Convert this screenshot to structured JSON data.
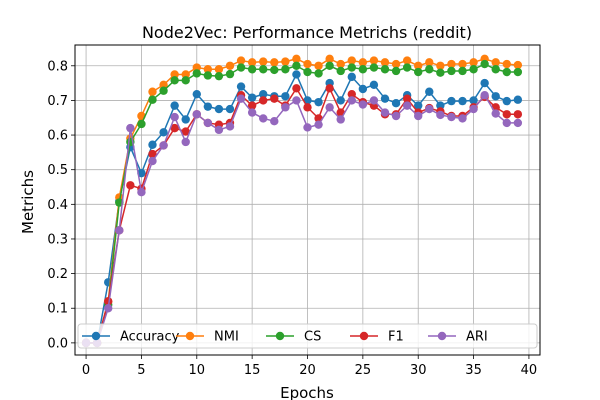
{
  "chart_data": {
    "type": "line",
    "title": "Node2Vec: Performance Metrichs (reddit)",
    "xlabel": "Epochs",
    "ylabel": "Metrichs",
    "xlim": [
      -1,
      41
    ],
    "ylim": [
      -0.035,
      0.86
    ],
    "xticks": [
      0,
      5,
      10,
      15,
      20,
      25,
      30,
      35,
      40
    ],
    "yticks": [
      0.0,
      0.1,
      0.2,
      0.3,
      0.4,
      0.5,
      0.6,
      0.7,
      0.8
    ],
    "ytick_labels": [
      "0.0",
      "0.1",
      "0.2",
      "0.3",
      "0.4",
      "0.5",
      "0.6",
      "0.7",
      "0.8"
    ],
    "grid": true,
    "legend_position": "bottom",
    "x": [
      0,
      1,
      2,
      3,
      4,
      5,
      6,
      7,
      8,
      9,
      10,
      11,
      12,
      13,
      14,
      15,
      16,
      17,
      18,
      19,
      20,
      21,
      22,
      23,
      24,
      25,
      26,
      27,
      28,
      29,
      30,
      31,
      32,
      33,
      34,
      35,
      36,
      37,
      38,
      39
    ],
    "series": [
      {
        "name": "Accuracy",
        "color": "#1f77b4",
        "values": [
          0.0,
          0.0,
          0.175,
          0.41,
          0.565,
          0.49,
          0.572,
          0.608,
          0.685,
          0.645,
          0.718,
          0.682,
          0.675,
          0.675,
          0.74,
          0.708,
          0.718,
          0.712,
          0.712,
          0.775,
          0.7,
          0.695,
          0.75,
          0.7,
          0.768,
          0.733,
          0.745,
          0.705,
          0.692,
          0.715,
          0.685,
          0.725,
          0.685,
          0.698,
          0.698,
          0.7,
          0.75,
          0.712,
          0.698,
          0.702
        ]
      },
      {
        "name": "NMI",
        "color": "#ff7f0e",
        "values": [
          0.0,
          0.0,
          0.12,
          0.42,
          0.59,
          0.655,
          0.725,
          0.745,
          0.775,
          0.775,
          0.795,
          0.79,
          0.79,
          0.8,
          0.815,
          0.81,
          0.812,
          0.81,
          0.812,
          0.82,
          0.805,
          0.8,
          0.82,
          0.805,
          0.815,
          0.81,
          0.815,
          0.81,
          0.805,
          0.815,
          0.8,
          0.81,
          0.8,
          0.805,
          0.805,
          0.81,
          0.82,
          0.81,
          0.805,
          0.802
        ]
      },
      {
        "name": "CS",
        "color": "#2ca02c",
        "values": [
          0.0,
          0.0,
          0.11,
          0.405,
          0.58,
          0.632,
          0.702,
          0.728,
          0.758,
          0.758,
          0.778,
          0.772,
          0.77,
          0.776,
          0.795,
          0.79,
          0.79,
          0.788,
          0.79,
          0.8,
          0.782,
          0.778,
          0.8,
          0.785,
          0.795,
          0.79,
          0.795,
          0.79,
          0.785,
          0.795,
          0.782,
          0.79,
          0.78,
          0.785,
          0.785,
          0.79,
          0.805,
          0.79,
          0.782,
          0.782
        ]
      },
      {
        "name": "F1",
        "color": "#d62728",
        "values": [
          0.0,
          0.0,
          0.12,
          0.325,
          0.455,
          0.445,
          0.545,
          0.57,
          0.62,
          0.61,
          0.66,
          0.635,
          0.63,
          0.635,
          0.715,
          0.685,
          0.7,
          0.705,
          0.685,
          0.735,
          0.68,
          0.648,
          0.735,
          0.665,
          0.718,
          0.695,
          0.685,
          0.66,
          0.66,
          0.705,
          0.665,
          0.678,
          0.668,
          0.655,
          0.655,
          0.68,
          0.71,
          0.68,
          0.66,
          0.66
        ]
      },
      {
        "name": "ARI",
        "color": "#9467bd",
        "values": [
          0.0,
          0.0,
          0.1,
          0.325,
          0.62,
          0.435,
          0.525,
          0.57,
          0.652,
          0.58,
          0.66,
          0.635,
          0.615,
          0.625,
          0.705,
          0.665,
          0.648,
          0.64,
          0.68,
          0.7,
          0.622,
          0.63,
          0.68,
          0.645,
          0.7,
          0.688,
          0.7,
          0.665,
          0.655,
          0.685,
          0.655,
          0.675,
          0.658,
          0.652,
          0.648,
          0.675,
          0.715,
          0.662,
          0.635,
          0.635
        ]
      }
    ]
  }
}
